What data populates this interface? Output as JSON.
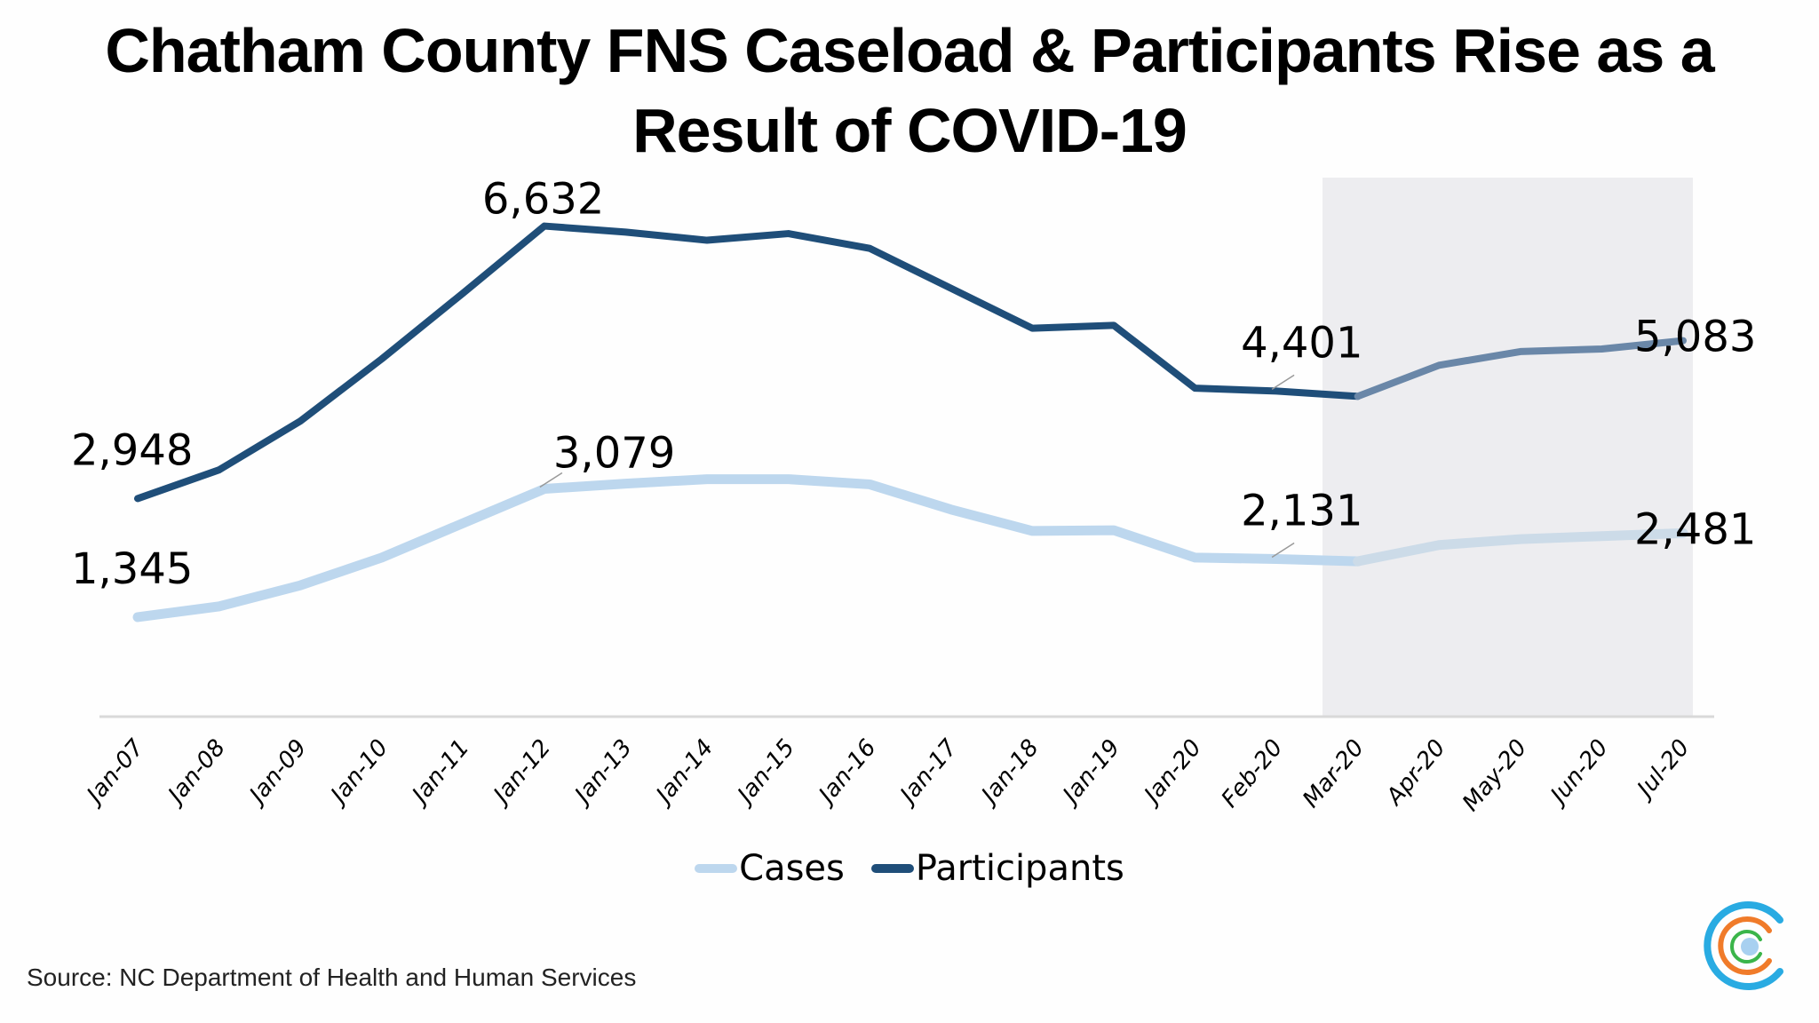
{
  "title": {
    "line1": "Chatham County FNS Caseload & Participants Rise as a",
    "line2": "Result of COVID-19"
  },
  "legend": {
    "cases_label": "Cases",
    "participants_label": "Participants"
  },
  "source": "Source: NC Department of Health and Human Services",
  "colors": {
    "cases": "#bdd7ee",
    "participants": "#1f4e79",
    "participants_covid": "#6a87a8",
    "cases_covid": "#ccdbe8",
    "shade": "#ededf0",
    "axis": "#d9d9d9"
  },
  "logo": {
    "icon": "concentric-c-logo-icon"
  },
  "chart_data": {
    "type": "line",
    "title": "Chatham County FNS Caseload & Participants Rise as a Result of COVID-19",
    "xlabel": "",
    "ylabel": "",
    "categories": [
      "Jan-07",
      "Jan-08",
      "Jan-09",
      "Jan-10",
      "Jan-11",
      "Jan-12",
      "Jan-13",
      "Jan-14",
      "Jan-15",
      "Jan-16",
      "Jan-17",
      "Jan-18",
      "Jan-19",
      "Jan-20",
      "Feb-20",
      "Mar-20",
      "Apr-20",
      "May-20",
      "Jun-20",
      "Jul-20"
    ],
    "series": [
      {
        "name": "Cases",
        "values": [
          1345,
          1490,
          1775,
          2150,
          2615,
          3079,
          3150,
          3210,
          3210,
          3140,
          2800,
          2510,
          2520,
          2150,
          2131,
          2100,
          2320,
          2400,
          2440,
          2481
        ]
      },
      {
        "name": "Participants",
        "values": [
          2948,
          3335,
          3995,
          4835,
          5725,
          6632,
          6550,
          6440,
          6530,
          6330,
          5790,
          5250,
          5290,
          4440,
          4401,
          4330,
          4750,
          4935,
          4970,
          5083
        ]
      }
    ],
    "data_labels": [
      {
        "series": "Participants",
        "category": "Jan-07",
        "text": "2,948"
      },
      {
        "series": "Participants",
        "category": "Jan-12",
        "text": "6,632"
      },
      {
        "series": "Participants",
        "category": "Feb-20",
        "text": "4,401"
      },
      {
        "series": "Participants",
        "category": "Jul-20",
        "text": "5,083"
      },
      {
        "series": "Cases",
        "category": "Jan-07",
        "text": "1,345"
      },
      {
        "series": "Cases",
        "category": "Jan-12",
        "text": "3,079"
      },
      {
        "series": "Cases",
        "category": "Feb-20",
        "text": "2,131"
      },
      {
        "series": "Cases",
        "category": "Jul-20",
        "text": "2,481"
      }
    ],
    "annotations": [
      {
        "type": "shaded-region",
        "from": "Mar-20",
        "to": "Jul-20",
        "meaning": "COVID-19 period"
      }
    ],
    "ylim": [
      0,
      7300
    ],
    "grid": false,
    "y_axis_visible": false,
    "legend_position": "bottom"
  }
}
